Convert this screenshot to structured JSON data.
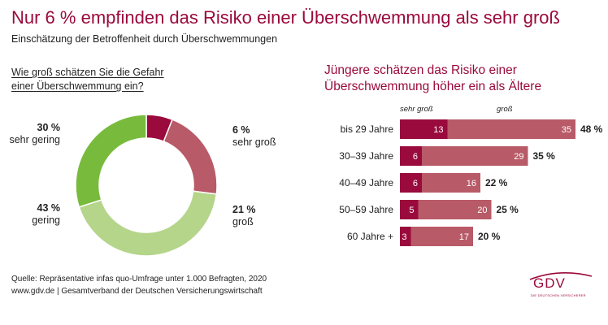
{
  "title": "Nur 6 % empfinden das Risiko einer Überschwemmung als sehr groß",
  "subtitle": "Einschätzung der Betroffenheit durch Überschwemmungen",
  "chart_data": [
    {
      "type": "pie",
      "title_line1": "Wie groß schätzen Sie die Gefahr",
      "title_line2": "einer Überschwemmung ein?",
      "slices": [
        {
          "label": "sehr groß",
          "value": 6,
          "value_label": "6 %",
          "color": "#9a0a3c"
        },
        {
          "label": "groß",
          "value": 21,
          "value_label": "21 %",
          "color": "#b85a67"
        },
        {
          "label": "gering",
          "value": 43,
          "value_label": "43 %",
          "color": "#b4d58a"
        },
        {
          "label": "sehr gering",
          "value": 30,
          "value_label": "30 %",
          "color": "#78bb3c"
        }
      ]
    },
    {
      "type": "bar",
      "stacked": true,
      "orientation": "horizontal",
      "title_line1": "Jüngere schätzen das Risiko einer",
      "title_line2": "Überschwemmung höher ein als Ältere",
      "legend": [
        "sehr groß",
        "groß"
      ],
      "categories": [
        "bis 29 Jahre",
        "30–39 Jahre",
        "40–49 Jahre",
        "50–59 Jahre",
        "60 Jahre +"
      ],
      "series": [
        {
          "name": "sehr groß",
          "values": [
            13,
            6,
            6,
            5,
            3
          ],
          "color": "#9a0a3c"
        },
        {
          "name": "groß",
          "values": [
            35,
            29,
            16,
            20,
            17
          ],
          "color": "#b85a67"
        }
      ],
      "totals": [
        "48 %",
        "35 %",
        "22 %",
        "25 %",
        "20 %"
      ]
    }
  ],
  "source": {
    "line1": "Quelle: Repräsentative infas quo-Umfrage unter 1.000 Befragten, 2020",
    "line2": "www.gdv.de | Gesamtverband der Deutschen Versicherungswirtschaft"
  },
  "logo": {
    "text": "GDV",
    "subtext": "DIE DEUTSCHEN VERSICHERER",
    "color": "#9a0a3c"
  }
}
